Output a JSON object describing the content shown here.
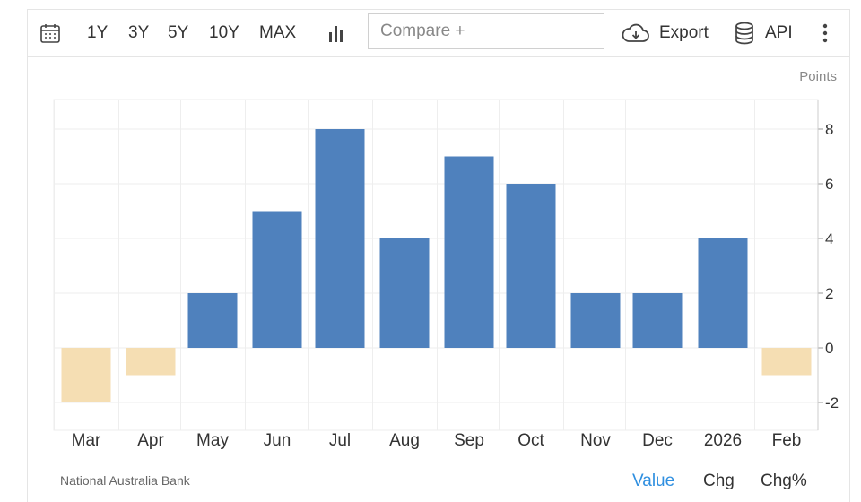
{
  "toolbar": {
    "ranges": [
      "1Y",
      "3Y",
      "5Y",
      "10Y",
      "MAX"
    ],
    "compare_placeholder": "Compare +",
    "export_label": "Export",
    "api_label": "API"
  },
  "footer": {
    "source": "National Australia Bank",
    "tabs": [
      "Value",
      "Chg",
      "Chg%"
    ],
    "active_tab": "Value"
  },
  "colors": {
    "positive": "#4f81bd",
    "negative": "#f5deb3",
    "active_tab": "#2f8fe0",
    "grid": "#eeeeee"
  },
  "chart_data": {
    "type": "bar",
    "unit_label": "Points",
    "categories": [
      "Mar",
      "Apr",
      "May",
      "Jun",
      "Jul",
      "Aug",
      "Sep",
      "Oct",
      "Nov",
      "Dec",
      "2026",
      "Feb"
    ],
    "values": [
      -2,
      -1,
      2,
      5,
      8,
      4,
      7,
      6,
      2,
      2,
      4,
      -1
    ],
    "ylim": [
      -3,
      9
    ],
    "yticks": [
      8,
      6,
      4,
      2,
      0,
      -2
    ],
    "grid": true,
    "y_axis_position": "right"
  }
}
